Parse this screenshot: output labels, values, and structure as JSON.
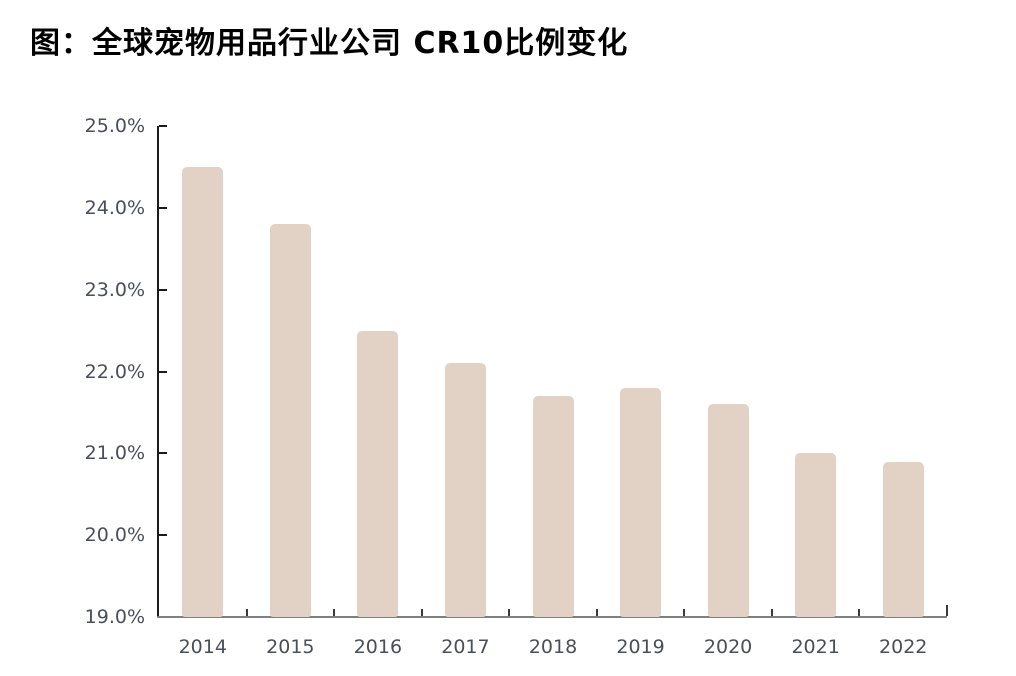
{
  "header": {
    "title": "图：全球宠物用品行业公司 CR10比例变化"
  },
  "colors": {
    "background": "#ffffff",
    "title": "#000000",
    "bar": "#e1d2c5",
    "y_axis": "#1a1a1a",
    "x_axis": "#808080",
    "tick": "#3a3a3a",
    "label": "#494f5a"
  },
  "chart_data": {
    "type": "bar",
    "title": "图：全球宠物用品行业公司 CR10比例变化",
    "categories": [
      "2014",
      "2015",
      "2016",
      "2017",
      "2018",
      "2019",
      "2020",
      "2021",
      "2022"
    ],
    "values": [
      24.5,
      23.8,
      22.5,
      22.1,
      21.7,
      21.8,
      21.6,
      21.0,
      20.9
    ],
    "unit": "%",
    "xlabel": "",
    "ylabel": "",
    "ylim": [
      19.0,
      25.0
    ],
    "ytick_step": 1.0,
    "ytick_labels": [
      "19.0%",
      "20.0%",
      "21.0%",
      "22.0%",
      "23.0%",
      "24.0%",
      "25.0%"
    ],
    "grid": false,
    "legend_position": "none"
  }
}
